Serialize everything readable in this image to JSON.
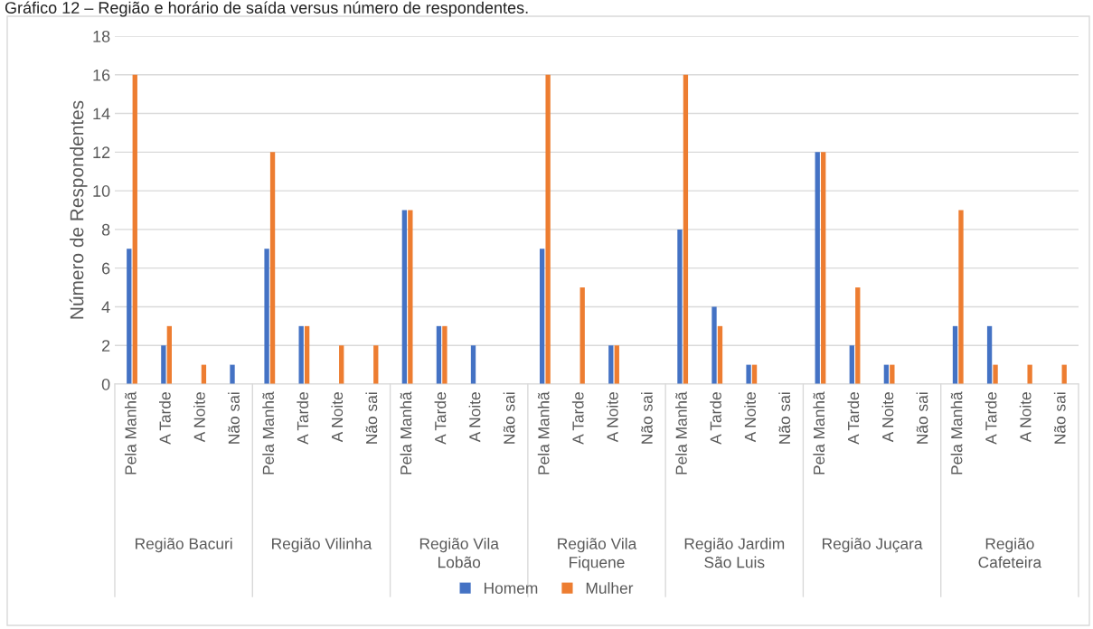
{
  "chart_data": {
    "type": "bar",
    "title": "Gráfico 12 – Região e horário de saída versus número de respondentes.",
    "ylabel": "Número de Respondentes",
    "categories": [
      "Pela Manhã",
      "A Tarde",
      "A Noite",
      "Não sai",
      "Pela Manhã",
      "A Tarde",
      "A Noite",
      "Não sai",
      "Pela Manhã",
      "A Tarde",
      "A Noite",
      "Não sai",
      "Pela Manhã",
      "A Tarde",
      "A Noite",
      "Não sai",
      "Pela Manhã",
      "A Tarde",
      "A Noite",
      "Não sai",
      "Pela Manhã",
      "A Tarde",
      "A Noite",
      "Não sai",
      "Pela Manhã",
      "A Tarde",
      "A Noite",
      "Não sai"
    ],
    "annotations": [
      "Região Bacuri",
      "Região Vilinha",
      "Região Vila Lobão",
      "Região Vila Fiquene",
      "Região Jardim São Luis",
      "Região Juçara",
      "Região Cafeteira"
    ],
    "series": [
      {
        "name": "Homem",
        "color": "#4472c4",
        "values": [
          7,
          2,
          0,
          1,
          7,
          3,
          0,
          0,
          9,
          3,
          2,
          0,
          7,
          0,
          2,
          0,
          8,
          4,
          1,
          0,
          12,
          2,
          1,
          0,
          3,
          3,
          0,
          0
        ]
      },
      {
        "name": "Mulher",
        "color": "#ed7d31",
        "values": [
          16,
          3,
          1,
          0,
          12,
          3,
          2,
          2,
          9,
          3,
          0,
          0,
          16,
          5,
          2,
          0,
          16,
          3,
          1,
          0,
          12,
          5,
          1,
          0,
          9,
          1,
          1,
          1
        ]
      }
    ],
    "ylim": [
      0,
      18
    ],
    "yticks": [
      0,
      2,
      4,
      6,
      8,
      10,
      12,
      14,
      16,
      18
    ],
    "grid": "y",
    "legend": "bottom"
  }
}
